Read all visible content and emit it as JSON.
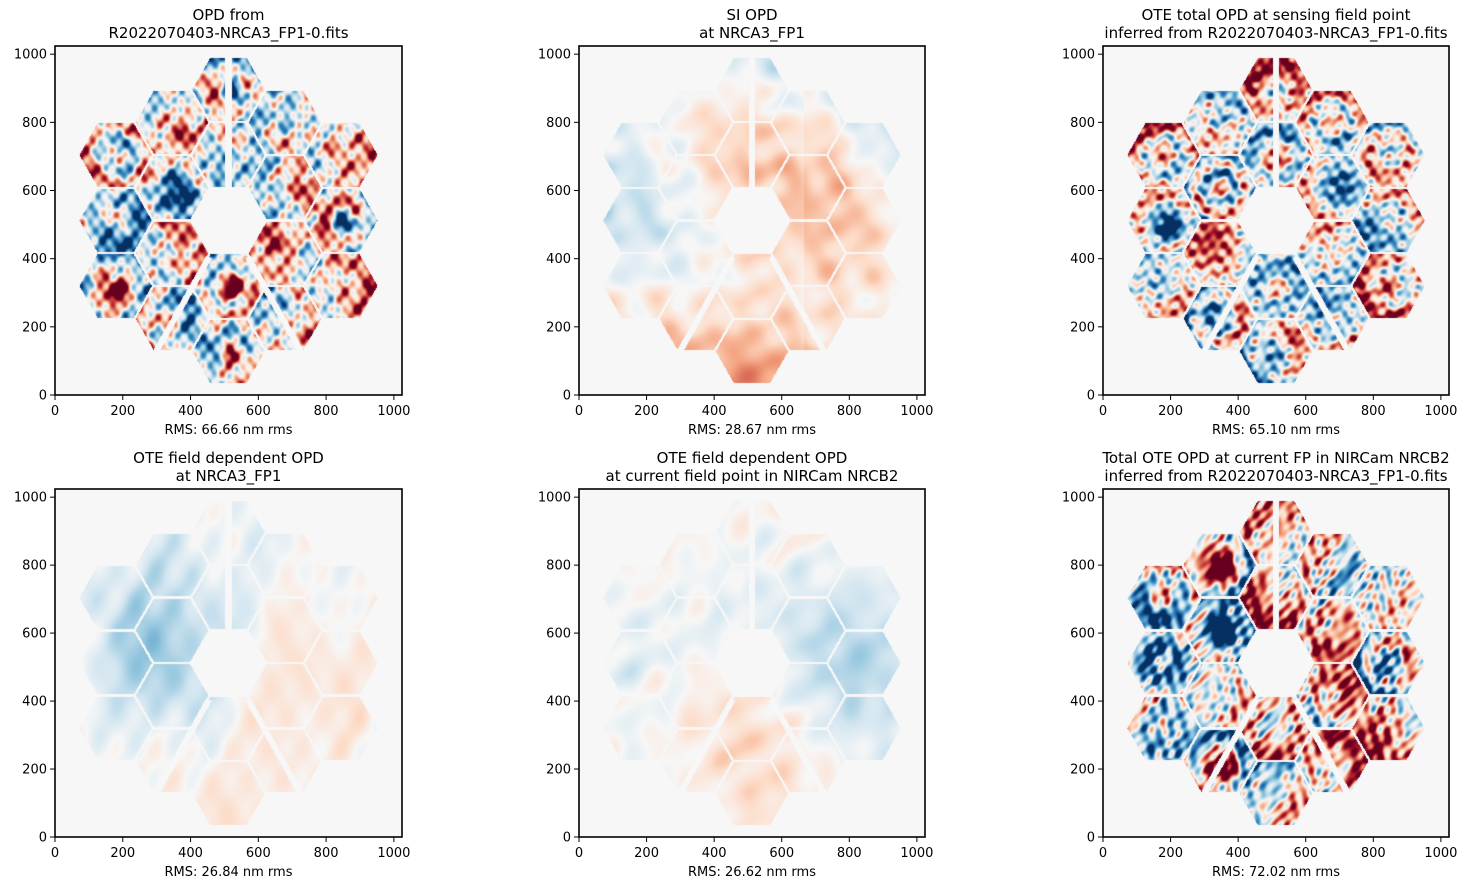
{
  "chart_data": [
    {
      "type": "heatmap",
      "title_lines": [
        "OPD from",
        "R2022070403-NRCA3_FP1-0.fits"
      ],
      "xlabel": "RMS: 66.66 nm rms",
      "xlim": [
        0,
        1024
      ],
      "ylim": [
        0,
        1024
      ],
      "xticks": [
        0,
        200,
        400,
        600,
        800,
        1000
      ],
      "yticks": [
        0,
        200,
        400,
        600,
        800,
        1000
      ],
      "colormap": "RdBu_r",
      "amplitude": 1.0,
      "pattern": "segmented",
      "seed": 11
    },
    {
      "type": "heatmap",
      "title_lines": [
        "SI OPD",
        "at NRCA3_FP1"
      ],
      "xlabel": "RMS: 28.67 nm rms",
      "xlim": [
        0,
        1024
      ],
      "ylim": [
        0,
        1024
      ],
      "xticks": [
        0,
        200,
        400,
        600,
        800,
        1000
      ],
      "yticks": [
        0,
        200,
        400,
        600,
        800,
        1000
      ],
      "colormap": "RdBu_r",
      "amplitude": 0.45,
      "pattern": "smooth-si",
      "seed": 23
    },
    {
      "type": "heatmap",
      "title_lines": [
        "OTE total OPD at sensing field point",
        "inferred from R2022070403-NRCA3_FP1-0.fits"
      ],
      "xlabel": "RMS: 65.10 nm rms",
      "xlim": [
        0,
        1024
      ],
      "ylim": [
        0,
        1024
      ],
      "xticks": [
        0,
        200,
        400,
        600,
        800,
        1000
      ],
      "yticks": [
        0,
        200,
        400,
        600,
        800,
        1000
      ],
      "colormap": "RdBu_r",
      "amplitude": 1.0,
      "pattern": "segmented",
      "seed": 37
    },
    {
      "type": "heatmap",
      "title_lines": [
        "OTE field dependent OPD",
        "at NRCA3_FP1"
      ],
      "xlabel": "RMS: 26.84 nm rms",
      "xlim": [
        0,
        1024
      ],
      "ylim": [
        0,
        1024
      ],
      "xticks": [
        0,
        200,
        400,
        600,
        800,
        1000
      ],
      "yticks": [
        0,
        200,
        400,
        600,
        800,
        1000
      ],
      "colormap": "RdBu_r",
      "amplitude": 0.4,
      "pattern": "smooth-left-blue",
      "seed": 41
    },
    {
      "type": "heatmap",
      "title_lines": [
        "OTE field dependent OPD",
        "at current field point in NIRCam NRCB2"
      ],
      "xlabel": "RMS: 26.62 nm rms",
      "xlim": [
        0,
        1024
      ],
      "ylim": [
        0,
        1024
      ],
      "xticks": [
        0,
        200,
        400,
        600,
        800,
        1000
      ],
      "yticks": [
        0,
        200,
        400,
        600,
        800,
        1000
      ],
      "colormap": "RdBu_r",
      "amplitude": 0.4,
      "pattern": "smooth-right-blue",
      "seed": 53
    },
    {
      "type": "heatmap",
      "title_lines": [
        "Total OTE OPD at current FP in NIRCam NRCB2",
        "inferred from R2022070403-NRCA3_FP1-0.fits"
      ],
      "xlabel": "RMS: 72.02 nm rms",
      "xlim": [
        0,
        1024
      ],
      "ylim": [
        0,
        1024
      ],
      "xticks": [
        0,
        200,
        400,
        600,
        800,
        1000
      ],
      "yticks": [
        0,
        200,
        400,
        600,
        800,
        1000
      ],
      "colormap": "RdBu_r",
      "amplitude": 1.15,
      "pattern": "segmented",
      "seed": 67
    }
  ]
}
